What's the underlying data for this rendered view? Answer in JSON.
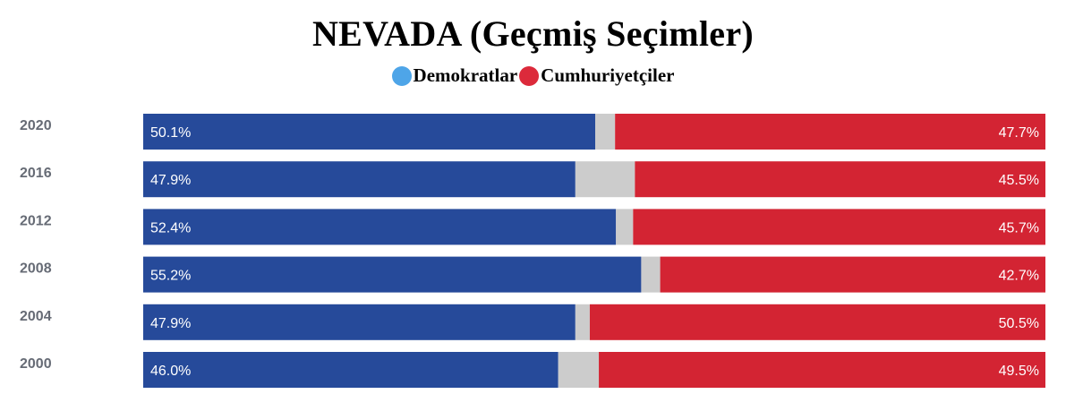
{
  "header": {
    "title": "NEVADA (Geçmiş Seçimler)"
  },
  "legend": {
    "items": [
      {
        "label": "Demokratlar",
        "color": "#4ea5e8"
      },
      {
        "label": "Cumhuriyetçiler",
        "color": "#dc2a3b"
      }
    ]
  },
  "chart_data": {
    "type": "bar",
    "orientation": "horizontal",
    "stacked": true,
    "categories": [
      "2020",
      "2016",
      "2012",
      "2008",
      "2004",
      "2000"
    ],
    "series": [
      {
        "name": "Demokratlar",
        "color": "#264a9a",
        "values": [
          50.1,
          47.9,
          52.4,
          55.2,
          47.9,
          46.0
        ],
        "labels": [
          "50.1%",
          "47.9%",
          "52.4%",
          "55.2%",
          "47.9%",
          "46.0%"
        ]
      },
      {
        "color": "#cccccc",
        "values": [
          2.2,
          6.6,
          1.9,
          2.1,
          1.6,
          4.5
        ]
      },
      {
        "name": "Cumhuriyetçiler",
        "color": "#d32433",
        "values": [
          47.7,
          45.5,
          45.7,
          42.7,
          50.5,
          49.5
        ],
        "labels": [
          "47.7%",
          "45.5%",
          "45.7%",
          "42.7%",
          "50.5%",
          "49.5%"
        ]
      }
    ],
    "xlim": [
      0,
      100
    ],
    "grid": false
  }
}
